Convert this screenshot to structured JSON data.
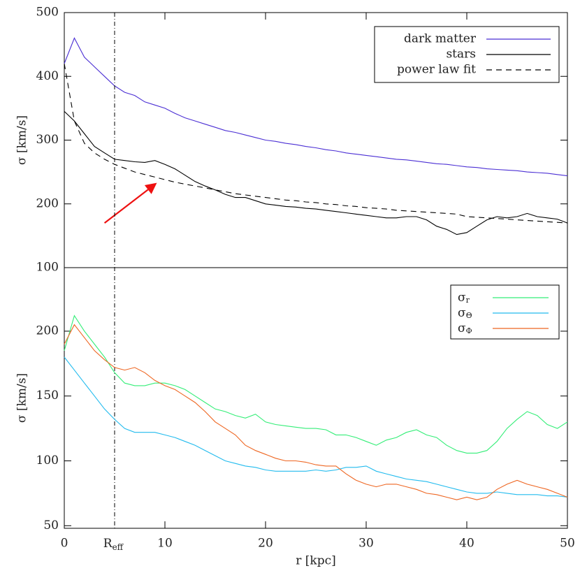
{
  "chart_data": [
    {
      "type": "line",
      "ylabel": "σ [km/s]",
      "ylim": [
        100,
        500
      ],
      "yticks": [
        100,
        200,
        300,
        400,
        500
      ],
      "xlim": [
        0,
        50
      ],
      "x": [
        0,
        1,
        2,
        3,
        4,
        5,
        6,
        7,
        8,
        9,
        10,
        11,
        12,
        13,
        14,
        15,
        16,
        17,
        18,
        19,
        20,
        21,
        22,
        23,
        24,
        25,
        26,
        27,
        28,
        29,
        30,
        31,
        32,
        33,
        34,
        35,
        36,
        37,
        38,
        39,
        40,
        41,
        42,
        43,
        44,
        45,
        46,
        47,
        48,
        49,
        50
      ],
      "series": [
        {
          "name": "dark matter",
          "color": "#4b2fd4",
          "dash": false,
          "values": [
            420,
            460,
            430,
            415,
            400,
            385,
            375,
            370,
            360,
            355,
            350,
            342,
            335,
            330,
            325,
            320,
            315,
            312,
            308,
            304,
            300,
            298,
            295,
            293,
            290,
            288,
            285,
            283,
            280,
            278,
            276,
            274,
            272,
            270,
            269,
            267,
            265,
            263,
            262,
            260,
            258,
            257,
            255,
            254,
            253,
            252,
            250,
            249,
            248,
            246,
            244
          ]
        },
        {
          "name": "stars",
          "color": "#000000",
          "dash": false,
          "values": [
            345,
            330,
            310,
            290,
            280,
            270,
            268,
            266,
            265,
            268,
            262,
            255,
            245,
            235,
            228,
            222,
            215,
            210,
            210,
            205,
            200,
            198,
            196,
            195,
            193,
            192,
            190,
            188,
            186,
            184,
            182,
            180,
            178,
            178,
            180,
            180,
            175,
            165,
            160,
            152,
            155,
            165,
            175,
            180,
            178,
            180,
            185,
            180,
            178,
            176,
            170
          ]
        },
        {
          "name": "power law fit",
          "color": "#000000",
          "dash": true,
          "values": [
            420,
            330,
            295,
            280,
            270,
            262,
            256,
            250,
            246,
            242,
            238,
            234,
            231,
            228,
            225,
            222,
            219,
            216,
            214,
            212,
            210,
            208,
            206,
            205,
            203,
            202,
            200,
            199,
            197,
            196,
            194,
            193,
            192,
            190,
            189,
            188,
            187,
            186,
            185,
            184,
            180,
            179,
            178,
            177,
            176,
            175,
            174,
            173,
            172,
            171,
            170
          ]
        }
      ],
      "arrow": {
        "from": [
          4,
          170
        ],
        "to": [
          9.2,
          233
        ],
        "color": "#ee1111"
      }
    },
    {
      "type": "line",
      "ylabel": "σ [km/s]",
      "xlabel": "r [kpc]",
      "ylim": [
        48,
        249
      ],
      "yticks": [
        50,
        100,
        150,
        200
      ],
      "xlim": [
        0,
        50
      ],
      "xticks": [
        0,
        10,
        20,
        30,
        40,
        50
      ],
      "reff": {
        "value": 5,
        "label": "R",
        "sub": "eff"
      },
      "x": [
        0,
        1,
        2,
        3,
        4,
        5,
        6,
        7,
        8,
        9,
        10,
        11,
        12,
        13,
        14,
        15,
        16,
        17,
        18,
        19,
        20,
        21,
        22,
        23,
        24,
        25,
        26,
        27,
        28,
        29,
        30,
        31,
        32,
        33,
        34,
        35,
        36,
        37,
        38,
        39,
        40,
        41,
        42,
        43,
        44,
        45,
        46,
        47,
        48,
        49,
        50
      ],
      "series": [
        {
          "name": "σ",
          "sub": "r",
          "color": "#33ee77",
          "dash": false,
          "values": [
            185,
            212,
            200,
            190,
            180,
            168,
            160,
            158,
            158,
            160,
            160,
            158,
            155,
            150,
            145,
            140,
            138,
            135,
            133,
            136,
            130,
            128,
            127,
            126,
            125,
            125,
            124,
            120,
            120,
            118,
            115,
            112,
            116,
            118,
            122,
            124,
            120,
            118,
            112,
            108,
            106,
            106,
            108,
            115,
            125,
            132,
            138,
            135,
            128,
            125,
            130
          ]
        },
        {
          "name": "σ",
          "sub": "Θ",
          "color": "#22bbee",
          "dash": false,
          "values": [
            180,
            170,
            160,
            150,
            140,
            132,
            125,
            122,
            122,
            122,
            120,
            118,
            115,
            112,
            108,
            104,
            100,
            98,
            96,
            95,
            93,
            92,
            92,
            92,
            92,
            93,
            92,
            93,
            95,
            95,
            96,
            92,
            90,
            88,
            86,
            85,
            84,
            82,
            80,
            78,
            76,
            75,
            75,
            76,
            75,
            74,
            74,
            74,
            73,
            73,
            72
          ]
        },
        {
          "name": "σ",
          "sub": "Φ",
          "color": "#ee6622",
          "dash": false,
          "values": [
            190,
            205,
            195,
            185,
            178,
            172,
            170,
            172,
            168,
            162,
            158,
            155,
            150,
            145,
            138,
            130,
            125,
            120,
            112,
            108,
            105,
            102,
            100,
            100,
            99,
            97,
            96,
            96,
            90,
            85,
            82,
            80,
            82,
            82,
            80,
            78,
            75,
            74,
            72,
            70,
            72,
            70,
            72,
            78,
            82,
            85,
            82,
            80,
            78,
            75,
            72
          ]
        }
      ]
    }
  ]
}
